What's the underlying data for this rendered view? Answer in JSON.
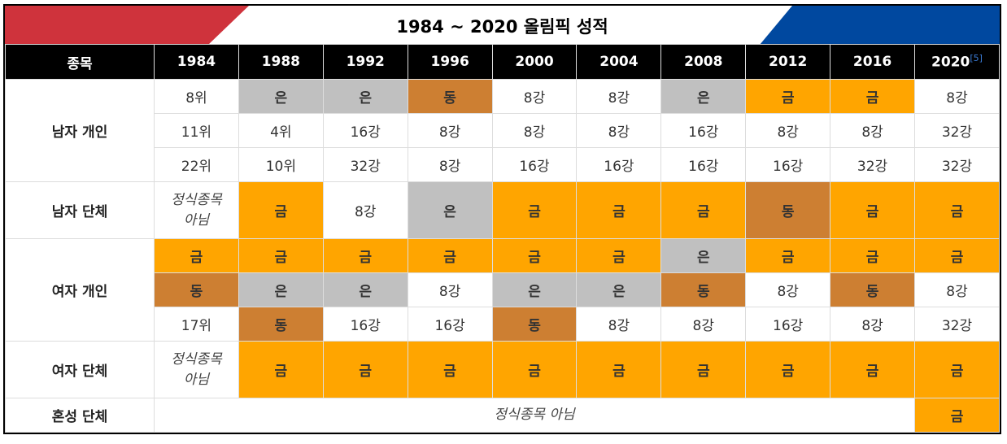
{
  "title": "1984 ~ 2020 올림픽 성적",
  "header": {
    "event_label": "종목",
    "years": [
      "1984",
      "1988",
      "1992",
      "1996",
      "2000",
      "2004",
      "2008",
      "2012",
      "2016",
      "2020"
    ],
    "footnote": "[5]"
  },
  "colors": {
    "gold": "#ffa500",
    "silver": "#c0c0c0",
    "bronze": "#cd7f32",
    "red": "#cf333c",
    "blue": "#00489f"
  },
  "groups": [
    {
      "event": "남자 개인",
      "rows": [
        [
          "8위",
          "은",
          "은",
          "동",
          "8강",
          "8강",
          "은",
          "금",
          "금",
          "8강"
        ],
        [
          "11위",
          "4위",
          "16강",
          "8강",
          "8강",
          "8강",
          "16강",
          "8강",
          "8강",
          "32강"
        ],
        [
          "22위",
          "10위",
          "32강",
          "8강",
          "16강",
          "16강",
          "16강",
          "16강",
          "32강",
          "32강"
        ]
      ]
    },
    {
      "event": "남자 단체",
      "tall": true,
      "rows": [
        [
          "정식종목 아님",
          "금",
          "8강",
          "은",
          "금",
          "금",
          "금",
          "동",
          "금",
          "금"
        ]
      ]
    },
    {
      "event": "여자 개인",
      "rows": [
        [
          "금",
          "금",
          "금",
          "금",
          "금",
          "금",
          "은",
          "금",
          "금",
          "금"
        ],
        [
          "동",
          "은",
          "은",
          "8강",
          "은",
          "은",
          "동",
          "8강",
          "동",
          "8강"
        ],
        [
          "17위",
          "동",
          "16강",
          "16강",
          "동",
          "8강",
          "8강",
          "16강",
          "8강",
          "32강"
        ]
      ]
    },
    {
      "event": "여자 단체",
      "tall": true,
      "rows": [
        [
          "정식종목 아님",
          "금",
          "금",
          "금",
          "금",
          "금",
          "금",
          "금",
          "금",
          "금"
        ]
      ]
    }
  ],
  "mixed": {
    "event": "혼성 단체",
    "not_official": "정식종목 아님",
    "result_2020": "금"
  }
}
